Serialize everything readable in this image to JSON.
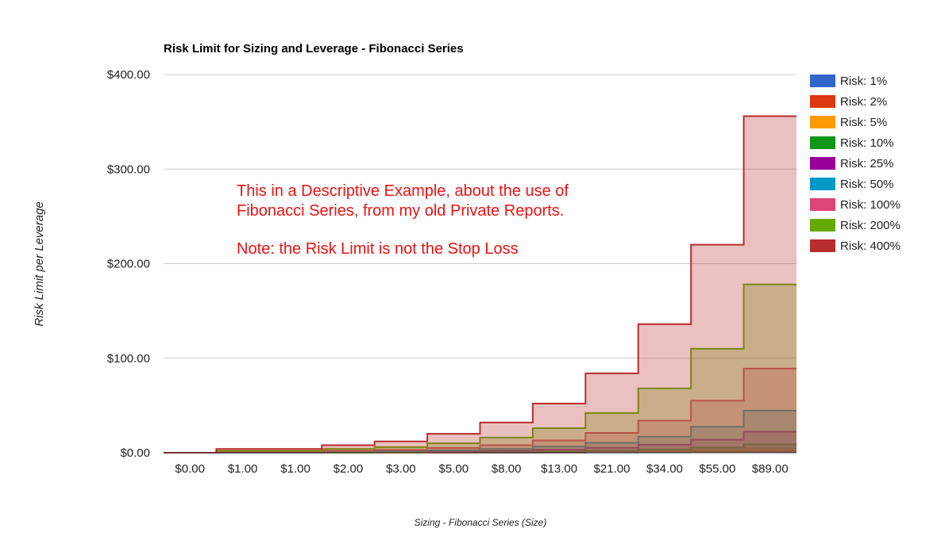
{
  "chart_data": {
    "type": "area",
    "stepped": true,
    "stacked": false,
    "title": "Risk Limit for Sizing and Leverage - Fibonacci Series",
    "xlabel": "Sizing - Fibonacci Series (Size)",
    "ylabel": "Risk Limit per Leverage",
    "categories": [
      "$0.00",
      "$1.00",
      "$1.00",
      "$2.00",
      "$3.00",
      "$5.00",
      "$8.00",
      "$13.00",
      "$21.00",
      "$34.00",
      "$55.00",
      "$89.00"
    ],
    "sizes": [
      0,
      1,
      1,
      2,
      3,
      5,
      8,
      13,
      21,
      34,
      55,
      89
    ],
    "ylim": [
      0,
      400
    ],
    "yticks": [
      0,
      100,
      200,
      300,
      400
    ],
    "ytick_labels": [
      "$0.00",
      "$100.00",
      "$200.00",
      "$300.00",
      "$400.00"
    ],
    "grid": true,
    "legend_position": "right",
    "series": [
      {
        "name": "Risk: 1%",
        "color": "#3366cc",
        "values": [
          0,
          0.01,
          0.01,
          0.02,
          0.03,
          0.05,
          0.08,
          0.13,
          0.21,
          0.34,
          0.55,
          0.89
        ]
      },
      {
        "name": "Risk: 2%",
        "color": "#dc3912",
        "values": [
          0,
          0.02,
          0.02,
          0.04,
          0.06,
          0.1,
          0.16,
          0.26,
          0.42,
          0.68,
          1.1,
          1.78
        ]
      },
      {
        "name": "Risk: 5%",
        "color": "#ff9900",
        "values": [
          0,
          0.05,
          0.05,
          0.1,
          0.15,
          0.25,
          0.4,
          0.65,
          1.05,
          1.7,
          2.75,
          4.45
        ]
      },
      {
        "name": "Risk: 10%",
        "color": "#109618",
        "values": [
          0,
          0.1,
          0.1,
          0.2,
          0.3,
          0.5,
          0.8,
          1.3,
          2.1,
          3.4,
          5.5,
          8.9
        ]
      },
      {
        "name": "Risk: 25%",
        "color": "#990099",
        "values": [
          0,
          0.25,
          0.25,
          0.5,
          0.75,
          1.25,
          2,
          3.25,
          5.25,
          8.5,
          13.75,
          22.25
        ]
      },
      {
        "name": "Risk: 50%",
        "color": "#0099c6",
        "values": [
          0,
          0.5,
          0.5,
          1,
          1.5,
          2.5,
          4,
          6.5,
          10.5,
          17,
          27.5,
          44.5
        ]
      },
      {
        "name": "Risk: 100%",
        "color": "#dd4477",
        "values": [
          0,
          1,
          1,
          2,
          3,
          5,
          8,
          13,
          21,
          34,
          55,
          89
        ]
      },
      {
        "name": "Risk: 200%",
        "color": "#66aa00",
        "values": [
          0,
          2,
          2,
          4,
          6,
          10,
          16,
          26,
          42,
          68,
          110,
          178
        ]
      },
      {
        "name": "Risk: 400%",
        "color": "#b82e2e",
        "values": [
          0,
          4,
          4,
          8,
          12,
          20,
          32,
          52,
          84,
          136,
          220,
          356
        ]
      }
    ],
    "annotations": [
      {
        "lines": [
          "This in a Descriptive Example, about the use of",
          "Fibonacci Series, from my old Private Reports."
        ],
        "color": "#ee1111"
      },
      {
        "lines": [
          "Note: the Risk Limit is not the Stop Loss"
        ],
        "color": "#ee1111"
      }
    ]
  }
}
